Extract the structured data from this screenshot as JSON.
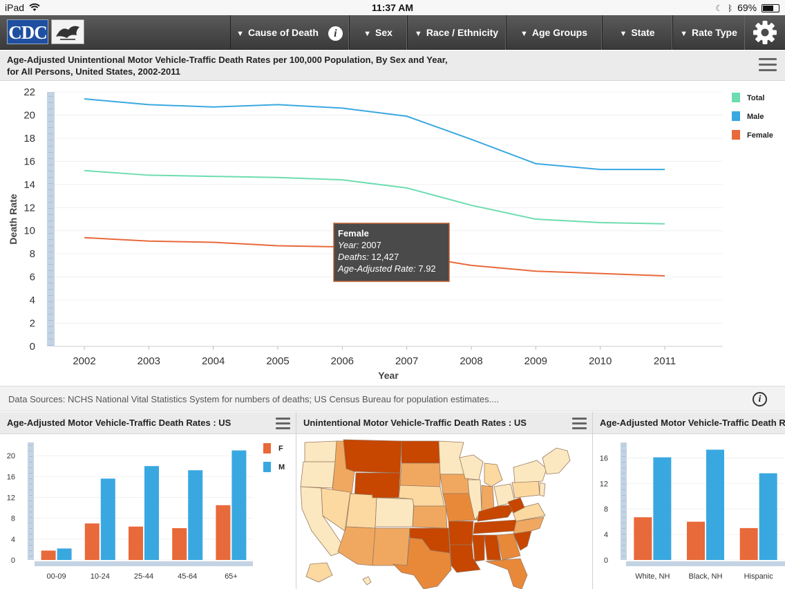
{
  "status_bar": {
    "device": "iPad",
    "time": "11:37 AM",
    "battery": "69%"
  },
  "nav": {
    "logo_text": "CDC",
    "filters": [
      {
        "label": "Cause of Death"
      },
      {
        "label": "Sex"
      },
      {
        "label": "Race / Ethnicity"
      },
      {
        "label": "Age Groups"
      },
      {
        "label": "State"
      },
      {
        "label": "Rate Type"
      }
    ]
  },
  "main_chart": {
    "title_line1": "Age-Adjusted Unintentional Motor Vehicle-Traffic Death Rates per 100,000 Population, By Sex and Year,",
    "title_line2": "for All Persons, United States, 2002-2011",
    "tooltip": {
      "series": "Female",
      "year_label": "Year:",
      "year": "2007",
      "deaths_label": "Deaths:",
      "deaths": "12,427",
      "rate_label": "Age-Adjusted Rate:",
      "rate": "7.92"
    }
  },
  "sources": {
    "text": "Data Sources: NCHS National Vital Statistics System for numbers of deaths; US Census Bureau for population estimates...."
  },
  "panels": {
    "age": {
      "title": "Age-Adjusted Motor Vehicle-Traffic Death Rates : US"
    },
    "map": {
      "title": "Unintentional Motor Vehicle-Traffic Death Rates : US"
    },
    "race": {
      "title": "Age-Adjusted Motor Vehicle-Traffic Death Rates by Race/Ethnicity : US"
    }
  },
  "chart_data": [
    {
      "type": "line",
      "title": "Age-Adjusted Unintentional Motor Vehicle-Traffic Death Rates per 100,000 Population, By Sex and Year, for All Persons, United States, 2002-2011",
      "xlabel": "Year",
      "ylabel": "Death Rate",
      "x": [
        "2002",
        "2003",
        "2004",
        "2005",
        "2006",
        "2007",
        "2008",
        "2009",
        "2010",
        "2011"
      ],
      "ylim": [
        0,
        22
      ],
      "yticks": [
        0,
        2,
        4,
        6,
        8,
        10,
        12,
        14,
        16,
        18,
        20,
        22
      ],
      "grid": true,
      "legend": "top-right",
      "series": [
        {
          "name": "Total",
          "color": "#6ddcaf",
          "values": [
            15.2,
            14.8,
            14.7,
            14.6,
            14.4,
            13.7,
            12.2,
            11.0,
            10.7,
            10.6
          ]
        },
        {
          "name": "Male",
          "color": "#3aa8e0",
          "values": [
            21.4,
            20.9,
            20.7,
            20.9,
            20.6,
            19.9,
            17.9,
            15.8,
            15.3,
            15.3
          ]
        },
        {
          "name": "Female",
          "color": "#e8693a",
          "values": [
            9.4,
            9.1,
            9.0,
            8.7,
            8.6,
            7.92,
            7.0,
            6.5,
            6.3,
            6.1
          ]
        }
      ]
    },
    {
      "type": "bar",
      "categories": [
        "00-09",
        "10-24",
        "25-44",
        "45-64",
        "65+"
      ],
      "ylim": [
        0,
        22
      ],
      "yticks": [
        0,
        4,
        8,
        12,
        16,
        20
      ],
      "legend": "top-right",
      "series": [
        {
          "name": "F",
          "color": "#e8693a",
          "values": [
            1.8,
            7.0,
            6.4,
            6.1,
            10.5
          ]
        },
        {
          "name": "M",
          "color": "#3aa8e0",
          "values": [
            2.2,
            15.6,
            18.0,
            17.2,
            21.0
          ]
        }
      ]
    },
    {
      "type": "bar",
      "categories": [
        "White, NH",
        "Black, NH",
        "Hispanic"
      ],
      "ylim": [
        0,
        18
      ],
      "yticks": [
        0,
        4,
        8,
        12,
        16
      ],
      "series": [
        {
          "name": "F",
          "color": "#e8693a",
          "values": [
            6.7,
            6.0,
            5.0
          ]
        },
        {
          "name": "M",
          "color": "#3aa8e0",
          "values": [
            16.1,
            17.3,
            13.6
          ]
        }
      ]
    }
  ]
}
